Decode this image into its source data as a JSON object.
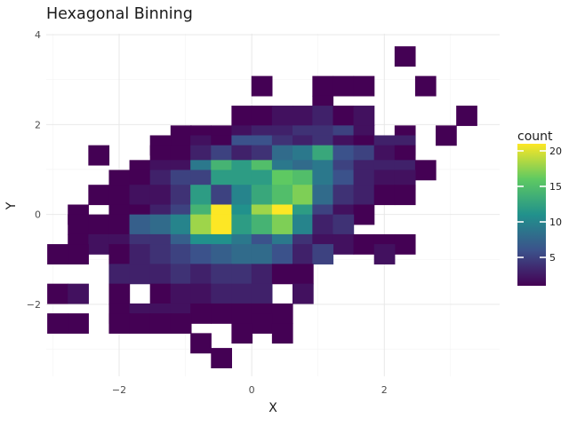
{
  "chart_data": {
    "type": "heatmap",
    "title": "Hexagonal Binning",
    "xlabel": "X",
    "ylabel": "Y",
    "xlim": [
      -3.1,
      3.74
    ],
    "ylim": [
      -3.6,
      4.02
    ],
    "xticks": [
      -2,
      0,
      2
    ],
    "xtick_labels": [
      "−2",
      "0",
      "2"
    ],
    "yticks": [
      -2,
      0,
      2,
      4
    ],
    "ytick_labels": [
      "−2",
      "0",
      "2",
      "4"
    ],
    "grid": true,
    "bin_width_x": 0.31,
    "bin_width_y": 0.44,
    "colormap": [
      "#440154",
      "#3b528b",
      "#21918c",
      "#5ec962",
      "#fde725"
    ],
    "count_range": [
      1,
      21
    ],
    "legend": {
      "title": "count",
      "ticks": [
        5,
        10,
        15,
        20
      ],
      "tick_labels": [
        "5",
        "10",
        "15",
        "20"
      ],
      "placement": "right"
    },
    "bins": [
      {
        "x": 2.31,
        "y": 3.52,
        "count": 1
      },
      {
        "x": 0.15,
        "y": 2.86,
        "count": 1
      },
      {
        "x": 1.07,
        "y": 2.86,
        "count": 1
      },
      {
        "x": 1.38,
        "y": 2.86,
        "count": 1
      },
      {
        "x": 1.69,
        "y": 2.86,
        "count": 1
      },
      {
        "x": 2.62,
        "y": 2.86,
        "count": 1
      },
      {
        "x": 1.07,
        "y": 2.42,
        "count": 1
      },
      {
        "x": -0.15,
        "y": 2.2,
        "count": 1
      },
      {
        "x": 0.15,
        "y": 2.2,
        "count": 1
      },
      {
        "x": 0.46,
        "y": 2.2,
        "count": 2
      },
      {
        "x": 0.77,
        "y": 2.2,
        "count": 2
      },
      {
        "x": 1.07,
        "y": 2.2,
        "count": 3
      },
      {
        "x": 1.38,
        "y": 2.2,
        "count": 1
      },
      {
        "x": 1.69,
        "y": 2.2,
        "count": 2
      },
      {
        "x": 3.24,
        "y": 2.2,
        "count": 1
      },
      {
        "x": -1.07,
        "y": 1.76,
        "count": 1
      },
      {
        "x": -0.77,
        "y": 1.76,
        "count": 1
      },
      {
        "x": -0.46,
        "y": 1.76,
        "count": 1
      },
      {
        "x": -0.15,
        "y": 1.76,
        "count": 2
      },
      {
        "x": 0.15,
        "y": 1.76,
        "count": 3
      },
      {
        "x": 0.46,
        "y": 1.76,
        "count": 3
      },
      {
        "x": 0.77,
        "y": 1.76,
        "count": 4
      },
      {
        "x": 1.07,
        "y": 1.76,
        "count": 4
      },
      {
        "x": 1.38,
        "y": 1.76,
        "count": 5
      },
      {
        "x": 1.69,
        "y": 1.76,
        "count": 2
      },
      {
        "x": 2.31,
        "y": 1.76,
        "count": 1
      },
      {
        "x": 2.93,
        "y": 1.76,
        "count": 1
      },
      {
        "x": -1.38,
        "y": 1.54,
        "count": 1
      },
      {
        "x": -0.77,
        "y": 1.54,
        "count": 2
      },
      {
        "x": -0.46,
        "y": 1.54,
        "count": 1
      },
      {
        "x": -0.15,
        "y": 1.54,
        "count": 6
      },
      {
        "x": 0.15,
        "y": 1.54,
        "count": 6
      },
      {
        "x": 0.46,
        "y": 1.54,
        "count": 4
      },
      {
        "x": 0.77,
        "y": 1.54,
        "count": 3
      },
      {
        "x": 1.07,
        "y": 1.54,
        "count": 4
      },
      {
        "x": 1.38,
        "y": 1.54,
        "count": 2
      },
      {
        "x": 1.69,
        "y": 1.54,
        "count": 1
      },
      {
        "x": 2.0,
        "y": 1.54,
        "count": 3
      },
      {
        "x": 2.31,
        "y": 1.54,
        "count": 3
      },
      {
        "x": -2.31,
        "y": 1.32,
        "count": 1
      },
      {
        "x": -1.38,
        "y": 1.32,
        "count": 1
      },
      {
        "x": -1.07,
        "y": 1.32,
        "count": 1
      },
      {
        "x": -0.77,
        "y": 1.32,
        "count": 3
      },
      {
        "x": -0.46,
        "y": 1.32,
        "count": 5
      },
      {
        "x": -0.15,
        "y": 1.32,
        "count": 3
      },
      {
        "x": 0.15,
        "y": 1.32,
        "count": 4
      },
      {
        "x": 0.46,
        "y": 1.32,
        "count": 8
      },
      {
        "x": 0.77,
        "y": 1.32,
        "count": 9
      },
      {
        "x": 1.07,
        "y": 1.32,
        "count": 13
      },
      {
        "x": 1.38,
        "y": 1.32,
        "count": 6
      },
      {
        "x": 1.69,
        "y": 1.32,
        "count": 5
      },
      {
        "x": 2.0,
        "y": 1.32,
        "count": 2
      },
      {
        "x": 2.31,
        "y": 1.32,
        "count": 1
      },
      {
        "x": -1.69,
        "y": 0.99,
        "count": 1
      },
      {
        "x": -1.38,
        "y": 0.99,
        "count": 2
      },
      {
        "x": -1.07,
        "y": 0.99,
        "count": 2
      },
      {
        "x": -0.77,
        "y": 0.99,
        "count": 9
      },
      {
        "x": -0.46,
        "y": 0.99,
        "count": 14
      },
      {
        "x": -0.15,
        "y": 0.99,
        "count": 12
      },
      {
        "x": 0.15,
        "y": 0.99,
        "count": 15
      },
      {
        "x": 0.46,
        "y": 0.99,
        "count": 9
      },
      {
        "x": 0.77,
        "y": 0.99,
        "count": 8
      },
      {
        "x": 1.07,
        "y": 0.99,
        "count": 9
      },
      {
        "x": 1.38,
        "y": 0.99,
        "count": 5
      },
      {
        "x": 1.69,
        "y": 0.99,
        "count": 3
      },
      {
        "x": 2.0,
        "y": 0.99,
        "count": 3
      },
      {
        "x": 2.31,
        "y": 0.99,
        "count": 3
      },
      {
        "x": 2.62,
        "y": 0.99,
        "count": 1
      },
      {
        "x": -2.0,
        "y": 0.77,
        "count": 1
      },
      {
        "x": -1.69,
        "y": 0.77,
        "count": 1
      },
      {
        "x": -1.38,
        "y": 0.77,
        "count": 3
      },
      {
        "x": -1.07,
        "y": 0.77,
        "count": 5
      },
      {
        "x": -0.77,
        "y": 0.77,
        "count": 5
      },
      {
        "x": -0.46,
        "y": 0.77,
        "count": 12
      },
      {
        "x": -0.15,
        "y": 0.77,
        "count": 12
      },
      {
        "x": 0.15,
        "y": 0.77,
        "count": 12
      },
      {
        "x": 0.46,
        "y": 0.77,
        "count": 16
      },
      {
        "x": 0.77,
        "y": 0.77,
        "count": 15
      },
      {
        "x": 1.07,
        "y": 0.77,
        "count": 9
      },
      {
        "x": 1.38,
        "y": 0.77,
        "count": 6
      },
      {
        "x": 1.69,
        "y": 0.77,
        "count": 3
      },
      {
        "x": 2.0,
        "y": 0.77,
        "count": 2
      },
      {
        "x": 2.31,
        "y": 0.77,
        "count": 2
      },
      {
        "x": -2.31,
        "y": 0.44,
        "count": 1
      },
      {
        "x": -2.0,
        "y": 0.44,
        "count": 1
      },
      {
        "x": -1.69,
        "y": 0.44,
        "count": 2
      },
      {
        "x": -1.38,
        "y": 0.44,
        "count": 2
      },
      {
        "x": -1.07,
        "y": 0.44,
        "count": 4
      },
      {
        "x": -0.77,
        "y": 0.44,
        "count": 12
      },
      {
        "x": -0.46,
        "y": 0.44,
        "count": 5
      },
      {
        "x": -0.15,
        "y": 0.44,
        "count": 10
      },
      {
        "x": 0.15,
        "y": 0.44,
        "count": 13
      },
      {
        "x": 0.46,
        "y": 0.44,
        "count": 15
      },
      {
        "x": 0.77,
        "y": 0.44,
        "count": 17
      },
      {
        "x": 1.07,
        "y": 0.44,
        "count": 8
      },
      {
        "x": 1.38,
        "y": 0.44,
        "count": 4
      },
      {
        "x": 1.69,
        "y": 0.44,
        "count": 3
      },
      {
        "x": 2.0,
        "y": 0.44,
        "count": 1
      },
      {
        "x": 2.31,
        "y": 0.44,
        "count": 1
      },
      {
        "x": -2.62,
        "y": 0.0,
        "count": 1
      },
      {
        "x": -2.0,
        "y": 0.0,
        "count": 1
      },
      {
        "x": -1.69,
        "y": 0.0,
        "count": 1
      },
      {
        "x": -1.38,
        "y": 0.0,
        "count": 3
      },
      {
        "x": -1.07,
        "y": 0.0,
        "count": 5
      },
      {
        "x": -0.77,
        "y": 0.0,
        "count": 14
      },
      {
        "x": -0.46,
        "y": 0.0,
        "count": 21
      },
      {
        "x": -0.15,
        "y": 0.0,
        "count": 11
      },
      {
        "x": 0.15,
        "y": 0.0,
        "count": 18
      },
      {
        "x": 0.46,
        "y": 0.0,
        "count": 21
      },
      {
        "x": 0.77,
        "y": 0.0,
        "count": 12
      },
      {
        "x": 1.07,
        "y": 0.0,
        "count": 5
      },
      {
        "x": 1.38,
        "y": 0.0,
        "count": 2
      },
      {
        "x": 1.69,
        "y": 0.0,
        "count": 1
      },
      {
        "x": -2.62,
        "y": -0.22,
        "count": 1
      },
      {
        "x": -2.31,
        "y": -0.22,
        "count": 1
      },
      {
        "x": -2.0,
        "y": -0.22,
        "count": 1
      },
      {
        "x": -1.69,
        "y": -0.22,
        "count": 7
      },
      {
        "x": -1.38,
        "y": -0.22,
        "count": 8
      },
      {
        "x": -1.07,
        "y": -0.22,
        "count": 10
      },
      {
        "x": -0.77,
        "y": -0.22,
        "count": 18
      },
      {
        "x": -0.46,
        "y": -0.22,
        "count": 21
      },
      {
        "x": -0.15,
        "y": -0.22,
        "count": 12
      },
      {
        "x": 0.15,
        "y": -0.22,
        "count": 14
      },
      {
        "x": 0.46,
        "y": -0.22,
        "count": 17
      },
      {
        "x": 0.77,
        "y": -0.22,
        "count": 10
      },
      {
        "x": 1.07,
        "y": -0.22,
        "count": 3
      },
      {
        "x": 1.38,
        "y": -0.22,
        "count": 4
      },
      {
        "x": -2.62,
        "y": -0.66,
        "count": 1
      },
      {
        "x": -2.31,
        "y": -0.66,
        "count": 2
      },
      {
        "x": -2.0,
        "y": -0.66,
        "count": 2
      },
      {
        "x": -1.69,
        "y": -0.66,
        "count": 4
      },
      {
        "x": -1.38,
        "y": -0.66,
        "count": 4
      },
      {
        "x": -1.07,
        "y": -0.66,
        "count": 7
      },
      {
        "x": -0.77,
        "y": -0.66,
        "count": 11
      },
      {
        "x": -0.46,
        "y": -0.66,
        "count": 11
      },
      {
        "x": -0.15,
        "y": -0.66,
        "count": 9
      },
      {
        "x": 0.15,
        "y": -0.66,
        "count": 6
      },
      {
        "x": 0.46,
        "y": -0.66,
        "count": 9
      },
      {
        "x": 0.77,
        "y": -0.66,
        "count": 4
      },
      {
        "x": 1.07,
        "y": -0.66,
        "count": 2
      },
      {
        "x": 1.38,
        "y": -0.66,
        "count": 2
      },
      {
        "x": 1.69,
        "y": -0.66,
        "count": 1
      },
      {
        "x": 2.0,
        "y": -0.66,
        "count": 1
      },
      {
        "x": 2.31,
        "y": -0.66,
        "count": 1
      },
      {
        "x": -2.93,
        "y": -0.88,
        "count": 1
      },
      {
        "x": -2.62,
        "y": -0.88,
        "count": 1
      },
      {
        "x": -2.0,
        "y": -0.88,
        "count": 1
      },
      {
        "x": -1.69,
        "y": -0.88,
        "count": 3
      },
      {
        "x": -1.38,
        "y": -0.88,
        "count": 4
      },
      {
        "x": -1.07,
        "y": -0.88,
        "count": 5
      },
      {
        "x": -0.77,
        "y": -0.88,
        "count": 6
      },
      {
        "x": -0.46,
        "y": -0.88,
        "count": 7
      },
      {
        "x": -0.15,
        "y": -0.88,
        "count": 8
      },
      {
        "x": 0.15,
        "y": -0.88,
        "count": 8
      },
      {
        "x": 0.46,
        "y": -0.88,
        "count": 6
      },
      {
        "x": 0.77,
        "y": -0.88,
        "count": 3
      },
      {
        "x": 1.07,
        "y": -0.88,
        "count": 5
      },
      {
        "x": 2.0,
        "y": -0.88,
        "count": 2
      },
      {
        "x": -2.0,
        "y": -1.32,
        "count": 3
      },
      {
        "x": -1.69,
        "y": -1.32,
        "count": 3
      },
      {
        "x": -1.38,
        "y": -1.32,
        "count": 3
      },
      {
        "x": -1.07,
        "y": -1.32,
        "count": 4
      },
      {
        "x": -0.77,
        "y": -1.32,
        "count": 3
      },
      {
        "x": -0.46,
        "y": -1.32,
        "count": 4
      },
      {
        "x": -0.15,
        "y": -1.32,
        "count": 4
      },
      {
        "x": 0.15,
        "y": -1.32,
        "count": 3
      },
      {
        "x": 0.46,
        "y": -1.32,
        "count": 1
      },
      {
        "x": 0.77,
        "y": -1.32,
        "count": 1
      },
      {
        "x": -2.93,
        "y": -1.76,
        "count": 1
      },
      {
        "x": -2.62,
        "y": -1.76,
        "count": 2
      },
      {
        "x": -2.0,
        "y": -1.76,
        "count": 1
      },
      {
        "x": -1.38,
        "y": -1.76,
        "count": 1
      },
      {
        "x": -1.07,
        "y": -1.76,
        "count": 2
      },
      {
        "x": -0.77,
        "y": -1.76,
        "count": 2
      },
      {
        "x": -0.46,
        "y": -1.76,
        "count": 3
      },
      {
        "x": -0.15,
        "y": -1.76,
        "count": 3
      },
      {
        "x": 0.15,
        "y": -1.76,
        "count": 3
      },
      {
        "x": 0.77,
        "y": -1.76,
        "count": 2
      },
      {
        "x": -2.0,
        "y": -2.2,
        "count": 1
      },
      {
        "x": -1.69,
        "y": -2.2,
        "count": 2
      },
      {
        "x": -1.38,
        "y": -2.2,
        "count": 2
      },
      {
        "x": -1.07,
        "y": -2.2,
        "count": 2
      },
      {
        "x": -0.77,
        "y": -2.2,
        "count": 1
      },
      {
        "x": -0.46,
        "y": -2.2,
        "count": 1
      },
      {
        "x": -0.15,
        "y": -2.2,
        "count": 1
      },
      {
        "x": 0.15,
        "y": -2.2,
        "count": 1
      },
      {
        "x": 0.46,
        "y": -2.2,
        "count": 1
      },
      {
        "x": -2.93,
        "y": -2.42,
        "count": 1
      },
      {
        "x": -2.62,
        "y": -2.42,
        "count": 1
      },
      {
        "x": -2.0,
        "y": -2.42,
        "count": 1
      },
      {
        "x": -1.69,
        "y": -2.42,
        "count": 1
      },
      {
        "x": -1.38,
        "y": -2.42,
        "count": 1
      },
      {
        "x": -1.07,
        "y": -2.42,
        "count": 1
      },
      {
        "x": 0.15,
        "y": -2.42,
        "count": 1
      },
      {
        "x": -0.15,
        "y": -2.64,
        "count": 1
      },
      {
        "x": 0.46,
        "y": -2.64,
        "count": 1
      },
      {
        "x": -0.77,
        "y": -2.86,
        "count": 1
      },
      {
        "x": -0.46,
        "y": -3.19,
        "count": 1
      }
    ]
  }
}
